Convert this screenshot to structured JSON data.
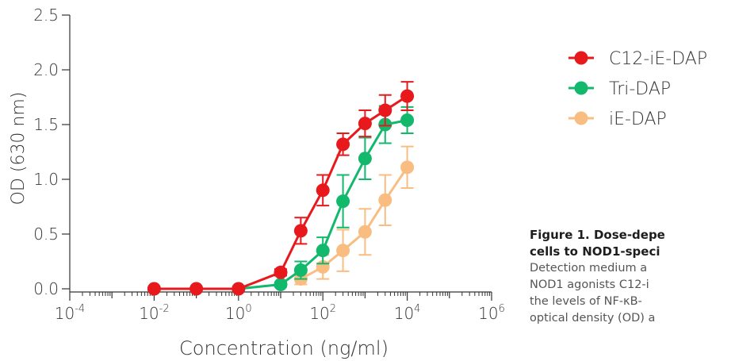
{
  "chart_data": {
    "type": "line",
    "xscale": "log",
    "xlabel": "Concentration (ng/ml)",
    "ylabel": "OD (630 nm)",
    "xlim": [
      0.0001,
      1000000
    ],
    "ylim": [
      0,
      2.5
    ],
    "x_ticks": [
      {
        "base": "10",
        "exp": "-4",
        "value": 0.0001
      },
      {
        "base": "10",
        "exp": "-2",
        "value": 0.01
      },
      {
        "base": "10",
        "exp": "0",
        "value": 1
      },
      {
        "base": "10",
        "exp": "2",
        "value": 100
      },
      {
        "base": "10",
        "exp": "4",
        "value": 10000
      },
      {
        "base": "10",
        "exp": "6",
        "value": 1000000
      }
    ],
    "y_ticks": [
      "0.0",
      "0.5",
      "1.0",
      "1.5",
      "2.0",
      "2.5"
    ],
    "grid": false,
    "legend_position": "right",
    "series": [
      {
        "name": "C12-iE-DAP",
        "color": "#e8191c",
        "x": [
          0.01,
          0.1,
          1,
          10,
          30,
          100,
          300,
          1000,
          3000,
          10000
        ],
        "y": [
          0.0,
          0.0,
          0.0,
          0.15,
          0.53,
          0.9,
          1.32,
          1.51,
          1.63,
          1.76
        ],
        "err": [
          0.01,
          0.01,
          0.01,
          0.03,
          0.12,
          0.14,
          0.1,
          0.12,
          0.14,
          0.13
        ]
      },
      {
        "name": "Tri-DAP",
        "color": "#12b86c",
        "x": [
          0.01,
          0.1,
          1,
          10,
          30,
          100,
          300,
          1000,
          3000,
          10000
        ],
        "y": [
          0.0,
          0.0,
          0.0,
          0.04,
          0.17,
          0.35,
          0.8,
          1.19,
          1.5,
          1.54
        ],
        "err": [
          0.01,
          0.01,
          0.01,
          0.02,
          0.08,
          0.12,
          0.24,
          0.19,
          0.17,
          0.12
        ]
      },
      {
        "name": "iE-DAP",
        "color": "#f9bd82",
        "x": [
          30,
          100,
          300,
          1000,
          3000,
          10000
        ],
        "y": [
          0.09,
          0.2,
          0.35,
          0.52,
          0.81,
          1.11
        ],
        "err": [
          0.05,
          0.11,
          0.19,
          0.21,
          0.23,
          0.19
        ]
      }
    ]
  },
  "caption": {
    "title_line1": "Figure 1. Dose-depe",
    "title_line2": "cells to NOD1-speci",
    "body_lines": [
      "Detection medium a",
      "NOD1 agonists C12-i",
      "the levels of NF-κB-",
      "optical density (OD) a"
    ]
  }
}
